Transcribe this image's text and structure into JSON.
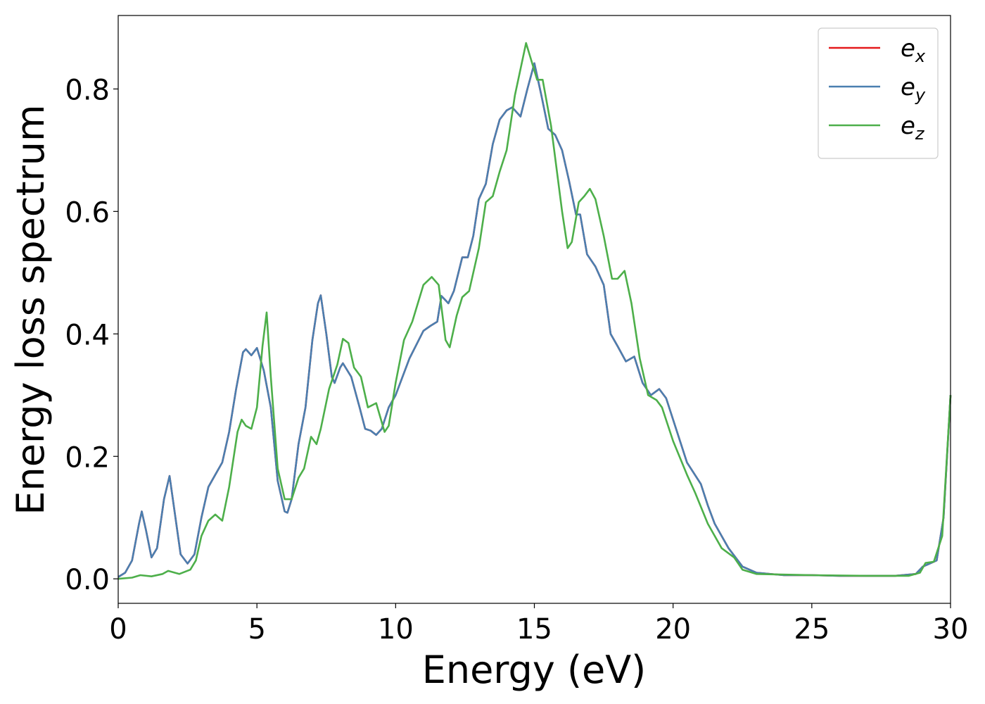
{
  "chart_data": {
    "type": "line",
    "xlabel": "Energy (eV)",
    "ylabel": "Energy loss spectrum",
    "xlim": [
      0,
      30
    ],
    "ylim": [
      -0.04,
      0.92
    ],
    "xticks": [
      0,
      5,
      10,
      15,
      20,
      25,
      30
    ],
    "yticks": [
      {
        "value": 0,
        "label": "0.0"
      },
      {
        "value": 0.2,
        "label": "0.2"
      },
      {
        "value": 0.4,
        "label": "0.4"
      },
      {
        "value": 0.6,
        "label": "0.6"
      },
      {
        "value": 0.8,
        "label": "0.8"
      }
    ],
    "legend": "upper right",
    "series": [
      {
        "name": "e_x",
        "color": "#e41a1c",
        "x": [
          0,
          0.25,
          0.5,
          0.75,
          0.85,
          1.0,
          1.2,
          1.4,
          1.65,
          1.85,
          2.0,
          2.25,
          2.5,
          2.75,
          3.0,
          3.25,
          3.5,
          3.75,
          4.0,
          4.25,
          4.5,
          4.6,
          4.8,
          5.0,
          5.25,
          5.5,
          5.75,
          6.0,
          6.1,
          6.25,
          6.5,
          6.75,
          7.0,
          7.2,
          7.3,
          7.5,
          7.7,
          7.8,
          8.0,
          8.1,
          8.4,
          8.7,
          8.9,
          9.1,
          9.3,
          9.5,
          9.75,
          10.0,
          10.5,
          11.0,
          11.25,
          11.5,
          11.65,
          11.9,
          12.1,
          12.4,
          12.6,
          12.8,
          13.0,
          13.25,
          13.5,
          13.75,
          14.0,
          14.2,
          14.5,
          14.75,
          15.0,
          15.25,
          15.5,
          15.75,
          16.0,
          16.25,
          16.5,
          16.65,
          16.9,
          17.2,
          17.5,
          17.75,
          18.0,
          18.3,
          18.6,
          18.9,
          19.2,
          19.5,
          19.75,
          20.0,
          20.5,
          21.0,
          21.25,
          21.5,
          22.0,
          22.5,
          23.0,
          24,
          25,
          26,
          27,
          28,
          28.75,
          29.0,
          29.25,
          29.5,
          29.75,
          30
        ],
        "values": [
          0.003,
          0.01,
          0.03,
          0.09,
          0.11,
          0.08,
          0.035,
          0.05,
          0.13,
          0.168,
          0.12,
          0.04,
          0.025,
          0.04,
          0.1,
          0.15,
          0.17,
          0.19,
          0.24,
          0.31,
          0.37,
          0.375,
          0.365,
          0.377,
          0.34,
          0.28,
          0.16,
          0.11,
          0.108,
          0.13,
          0.22,
          0.28,
          0.39,
          0.45,
          0.463,
          0.4,
          0.33,
          0.32,
          0.345,
          0.352,
          0.33,
          0.28,
          0.245,
          0.242,
          0.235,
          0.245,
          0.28,
          0.3,
          0.36,
          0.405,
          0.413,
          0.42,
          0.462,
          0.45,
          0.47,
          0.525,
          0.525,
          0.56,
          0.62,
          0.645,
          0.71,
          0.75,
          0.765,
          0.77,
          0.755,
          0.8,
          0.842,
          0.79,
          0.735,
          0.725,
          0.7,
          0.65,
          0.595,
          0.595,
          0.53,
          0.51,
          0.48,
          0.4,
          0.38,
          0.355,
          0.363,
          0.32,
          0.3,
          0.31,
          0.295,
          0.26,
          0.19,
          0.155,
          0.12,
          0.09,
          0.05,
          0.02,
          0.01,
          0.006,
          0.006,
          0.005,
          0.005,
          0.005,
          0.008,
          0.02,
          0.025,
          0.03,
          0.1,
          0.3
        ]
      },
      {
        "name": "e_y",
        "color": "#4a7fb0",
        "x": [
          0,
          0.25,
          0.5,
          0.75,
          0.85,
          1.0,
          1.2,
          1.4,
          1.65,
          1.85,
          2.0,
          2.25,
          2.5,
          2.75,
          3.0,
          3.25,
          3.5,
          3.75,
          4.0,
          4.25,
          4.5,
          4.6,
          4.8,
          5.0,
          5.25,
          5.5,
          5.75,
          6.0,
          6.1,
          6.25,
          6.5,
          6.75,
          7.0,
          7.2,
          7.3,
          7.5,
          7.7,
          7.8,
          8.0,
          8.1,
          8.4,
          8.7,
          8.9,
          9.1,
          9.3,
          9.5,
          9.75,
          10.0,
          10.5,
          11.0,
          11.25,
          11.5,
          11.65,
          11.9,
          12.1,
          12.4,
          12.6,
          12.8,
          13.0,
          13.25,
          13.5,
          13.75,
          14.0,
          14.2,
          14.5,
          14.75,
          15.0,
          15.25,
          15.5,
          15.75,
          16.0,
          16.25,
          16.5,
          16.65,
          16.9,
          17.2,
          17.5,
          17.75,
          18.0,
          18.3,
          18.6,
          18.9,
          19.2,
          19.5,
          19.75,
          20.0,
          20.5,
          21.0,
          21.25,
          21.5,
          22.0,
          22.5,
          23.0,
          24,
          25,
          26,
          27,
          28,
          28.75,
          29.0,
          29.25,
          29.5,
          29.75,
          30
        ],
        "values": [
          0.003,
          0.01,
          0.03,
          0.09,
          0.11,
          0.08,
          0.035,
          0.05,
          0.13,
          0.168,
          0.12,
          0.04,
          0.025,
          0.04,
          0.1,
          0.15,
          0.17,
          0.19,
          0.24,
          0.31,
          0.37,
          0.375,
          0.365,
          0.377,
          0.34,
          0.28,
          0.16,
          0.11,
          0.108,
          0.13,
          0.22,
          0.28,
          0.39,
          0.45,
          0.463,
          0.4,
          0.33,
          0.32,
          0.345,
          0.352,
          0.33,
          0.28,
          0.245,
          0.242,
          0.235,
          0.245,
          0.28,
          0.3,
          0.36,
          0.405,
          0.413,
          0.42,
          0.462,
          0.45,
          0.47,
          0.525,
          0.525,
          0.56,
          0.62,
          0.645,
          0.71,
          0.75,
          0.765,
          0.77,
          0.755,
          0.8,
          0.842,
          0.79,
          0.735,
          0.725,
          0.7,
          0.65,
          0.595,
          0.595,
          0.53,
          0.51,
          0.48,
          0.4,
          0.38,
          0.355,
          0.363,
          0.32,
          0.3,
          0.31,
          0.295,
          0.26,
          0.19,
          0.155,
          0.12,
          0.09,
          0.05,
          0.02,
          0.01,
          0.006,
          0.006,
          0.005,
          0.005,
          0.005,
          0.008,
          0.02,
          0.025,
          0.03,
          0.1,
          0.3
        ]
      },
      {
        "name": "e_z",
        "color": "#4daf4a",
        "x": [
          0,
          0.5,
          0.8,
          1.2,
          1.6,
          1.8,
          2.2,
          2.6,
          2.8,
          3.0,
          3.25,
          3.5,
          3.75,
          4.0,
          4.3,
          4.45,
          4.6,
          4.8,
          5.0,
          5.2,
          5.35,
          5.5,
          5.75,
          6.0,
          6.25,
          6.5,
          6.7,
          6.95,
          7.15,
          7.3,
          7.6,
          7.9,
          8.1,
          8.3,
          8.5,
          8.75,
          9.0,
          9.3,
          9.6,
          9.75,
          10.0,
          10.3,
          10.6,
          11.0,
          11.3,
          11.55,
          11.8,
          11.95,
          12.2,
          12.4,
          12.65,
          13.0,
          13.25,
          13.5,
          13.75,
          14.0,
          14.3,
          14.7,
          14.9,
          15.1,
          15.3,
          15.6,
          16.0,
          16.2,
          16.35,
          16.6,
          16.8,
          17.0,
          17.2,
          17.5,
          17.8,
          18.0,
          18.25,
          18.5,
          18.8,
          19.1,
          19.4,
          19.6,
          20.0,
          20.5,
          20.8,
          21.25,
          21.75,
          22.2,
          22.5,
          23.0,
          25,
          27,
          28.5,
          28.9,
          29.1,
          29.4,
          29.7,
          30
        ],
        "values": [
          0.0,
          0.002,
          0.006,
          0.004,
          0.008,
          0.013,
          0.008,
          0.015,
          0.03,
          0.07,
          0.095,
          0.105,
          0.095,
          0.15,
          0.24,
          0.26,
          0.25,
          0.245,
          0.28,
          0.38,
          0.435,
          0.33,
          0.18,
          0.13,
          0.13,
          0.165,
          0.18,
          0.232,
          0.22,
          0.245,
          0.31,
          0.35,
          0.392,
          0.385,
          0.345,
          0.33,
          0.28,
          0.287,
          0.24,
          0.25,
          0.32,
          0.39,
          0.42,
          0.48,
          0.493,
          0.48,
          0.39,
          0.378,
          0.43,
          0.46,
          0.47,
          0.54,
          0.615,
          0.625,
          0.665,
          0.7,
          0.79,
          0.875,
          0.845,
          0.815,
          0.815,
          0.74,
          0.6,
          0.54,
          0.55,
          0.615,
          0.625,
          0.637,
          0.62,
          0.56,
          0.49,
          0.49,
          0.503,
          0.45,
          0.36,
          0.3,
          0.292,
          0.28,
          0.225,
          0.17,
          0.14,
          0.09,
          0.05,
          0.035,
          0.015,
          0.008,
          0.006,
          0.005,
          0.005,
          0.01,
          0.026,
          0.028,
          0.07,
          0.3
        ]
      }
    ]
  }
}
